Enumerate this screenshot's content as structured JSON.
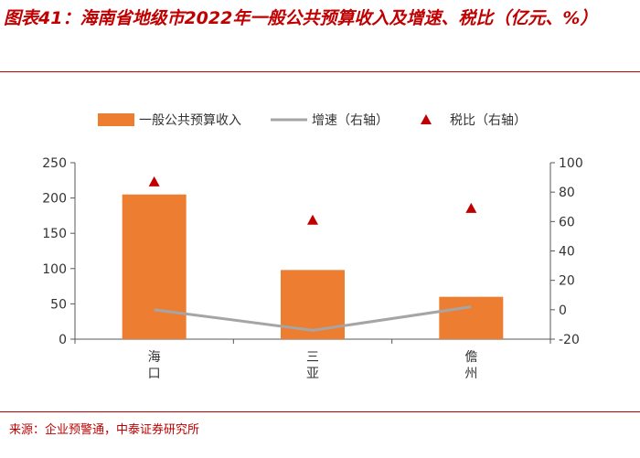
{
  "figure": {
    "title": "图表41：海南省地级市2022年一般公共预算收入及增速、税比（亿元、%）",
    "source": "来源：企业预警通，中泰证券研究所"
  },
  "chart_data": {
    "type": "bar",
    "categories": [
      "海口",
      "三亚",
      "儋州"
    ],
    "series": [
      {
        "name": "一般公共预算收入",
        "type": "bar",
        "axis": "left",
        "color": "#ed7d31",
        "values": [
          205,
          98,
          60
        ]
      },
      {
        "name": "增速（右轴）",
        "type": "line",
        "axis": "right",
        "color": "#a5a5a5",
        "values": [
          0,
          -14,
          2
        ]
      },
      {
        "name": "税比（右轴）",
        "type": "scatter",
        "marker": "triangle",
        "axis": "right",
        "color": "#c00000",
        "values": [
          87,
          61,
          69
        ]
      }
    ],
    "y_left": {
      "range": [
        0,
        250
      ],
      "ticks": [
        0,
        50,
        100,
        150,
        200,
        250
      ]
    },
    "y_right": {
      "range": [
        -20,
        100
      ],
      "ticks": [
        -20,
        0,
        20,
        40,
        60,
        80,
        100
      ]
    },
    "legend_position": "top",
    "grid": false
  }
}
